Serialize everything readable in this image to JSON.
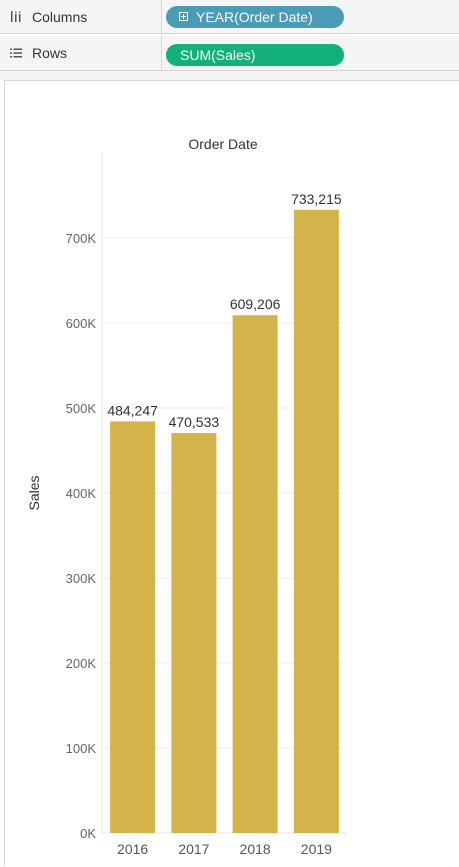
{
  "shelves": {
    "columns": {
      "label": "Columns",
      "icon": "columns-icon",
      "pill": "YEAR(Order Date)",
      "pill_color": "#4a9bb6"
    },
    "rows": {
      "label": "Rows",
      "icon": "rows-icon",
      "pill": "SUM(Sales)",
      "pill_color": "#14b07c"
    }
  },
  "chart_data": {
    "type": "bar",
    "title": "Order Date",
    "ylabel": "Sales",
    "xlabel": "",
    "categories": [
      "2016",
      "2017",
      "2018",
      "2019"
    ],
    "values": [
      484247,
      470533,
      609206,
      733215
    ],
    "value_labels": [
      "484,247",
      "470,533",
      "609,206",
      "733,215"
    ],
    "ylim": [
      0,
      800000
    ],
    "yticks": [
      0,
      100000,
      200000,
      300000,
      400000,
      500000,
      600000,
      700000
    ],
    "ytick_labels": [
      "0K",
      "100K",
      "200K",
      "300K",
      "400K",
      "500K",
      "600K",
      "700K"
    ],
    "bar_color": "#d4b44a",
    "grid": true
  }
}
